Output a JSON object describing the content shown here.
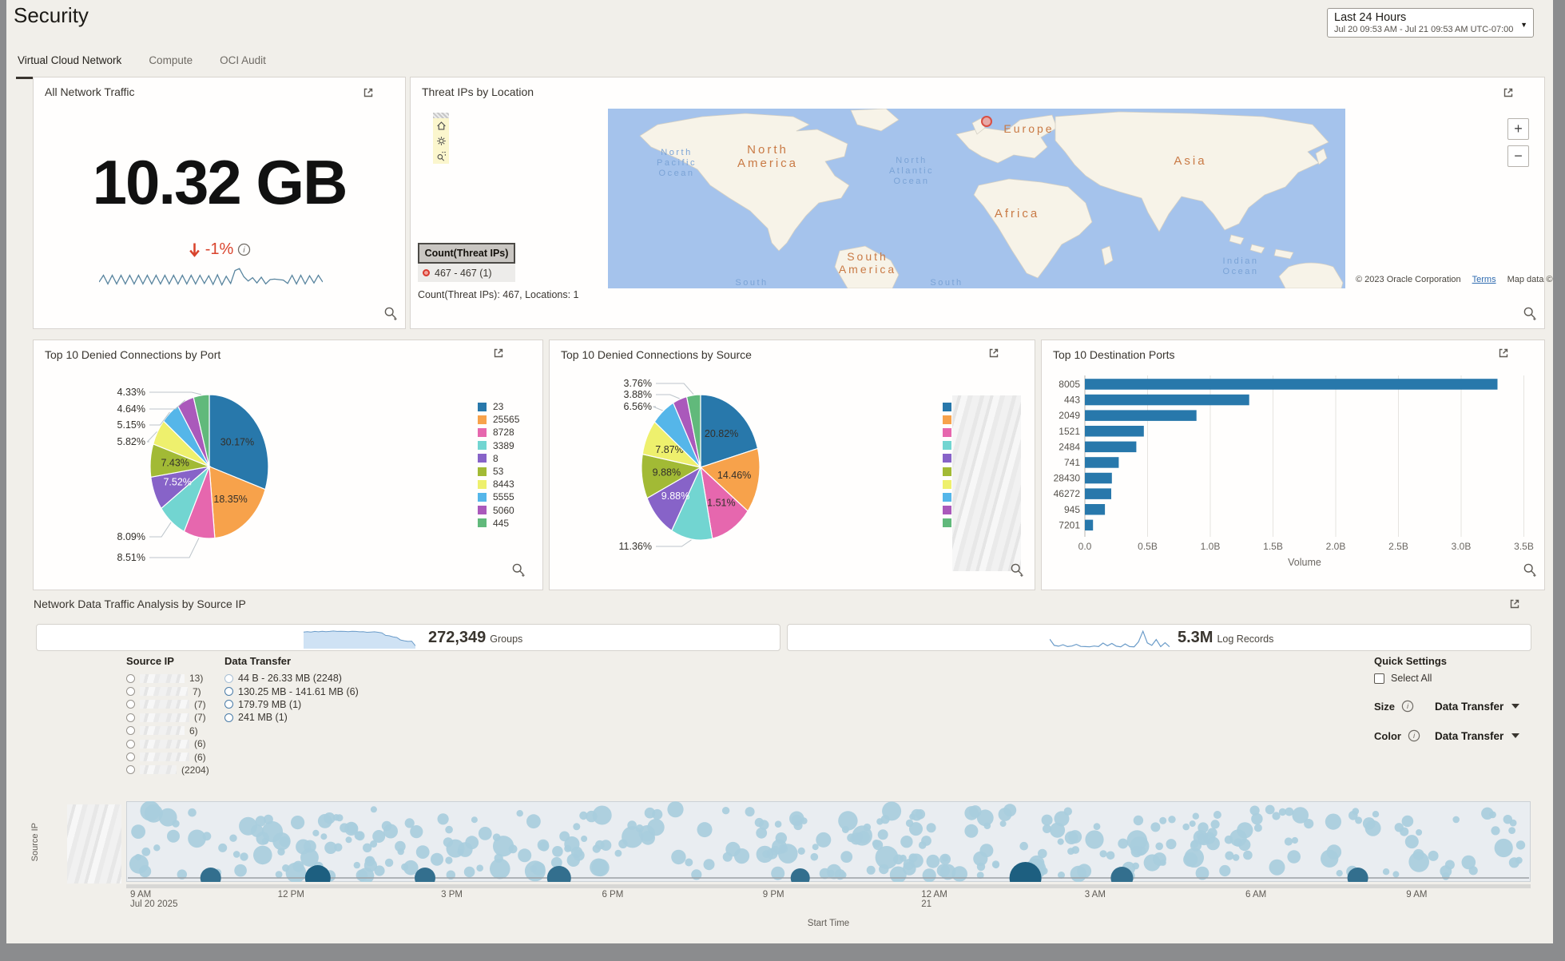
{
  "header": {
    "title": "Security",
    "time_range": {
      "label": "Last 24 Hours",
      "detail": "Jul 20 09:53 AM - Jul 21 09:53 AM UTC-07:00"
    }
  },
  "tabs": [
    {
      "label": "Virtual Cloud Network",
      "active": true
    },
    {
      "label": "Compute",
      "active": false
    },
    {
      "label": "OCI Audit",
      "active": false
    }
  ],
  "traffic": {
    "title": "All Network Traffic",
    "value": "10.32 GB",
    "delta": "-1%",
    "delta_color": "#d9432c",
    "spark": [
      40,
      68,
      32,
      68,
      32,
      68,
      32,
      68,
      32,
      68,
      32,
      68,
      32,
      68,
      32,
      68,
      32,
      68,
      32,
      68,
      32,
      68,
      32,
      68,
      34,
      66,
      30,
      70,
      28,
      64,
      34,
      88,
      96,
      62,
      44,
      58,
      36,
      60,
      32,
      50,
      52,
      50,
      48,
      34,
      68,
      32,
      68,
      32,
      66,
      36,
      68,
      40
    ]
  },
  "threat_map": {
    "title": "Threat IPs by Location",
    "legend_title": "Count(Threat IPs)",
    "legend_item": "467 - 467  (1)",
    "summary": "Count(Threat IPs): 467, Locations: 1",
    "attribution": "© 2023 Oracle Corporation",
    "terms_link": "Terms",
    "map_source": "Map data © HERE",
    "zoom_in": "+",
    "zoom_out": "−",
    "labels": [
      {
        "lines": [
          "North",
          "America"
        ],
        "type": "land"
      },
      {
        "lines": [
          "Europe"
        ],
        "type": "land"
      },
      {
        "lines": [
          "Asia"
        ],
        "type": "land"
      },
      {
        "lines": [
          "Africa"
        ],
        "type": "land"
      },
      {
        "lines": [
          "South",
          "America"
        ],
        "type": "land"
      },
      {
        "lines": [
          "North",
          "Pacific",
          "Ocean"
        ],
        "type": "ocean"
      },
      {
        "lines": [
          "North",
          "Atlantic",
          "Ocean"
        ],
        "type": "ocean"
      },
      {
        "lines": [
          "Indian",
          "Ocean"
        ],
        "type": "ocean"
      },
      {
        "lines": [
          "South"
        ],
        "type": "ocean"
      },
      {
        "lines": [
          "South"
        ],
        "type": "ocean"
      }
    ]
  },
  "analysis": {
    "title": "Network Data Traffic Analysis by Source IP",
    "groups": {
      "value": "272,349",
      "label": "Groups",
      "spark": [
        80,
        82,
        80,
        83,
        81,
        84,
        82,
        83,
        85,
        83,
        84,
        83,
        82,
        84,
        83,
        81,
        82,
        79,
        80,
        81,
        79,
        76,
        64,
        62,
        57,
        54,
        42,
        38,
        35,
        36,
        14
      ]
    },
    "logs": {
      "value": "5.3M",
      "label": "Log Records",
      "spark": [
        42,
        12,
        8,
        15,
        6,
        9,
        17,
        7,
        6,
        5,
        9,
        6,
        23,
        10,
        21,
        8,
        5,
        19,
        6,
        5,
        29,
        80,
        24,
        12,
        40,
        6,
        25,
        5
      ]
    },
    "source_ip": {
      "title": "Source IP",
      "items": [
        "13)",
        "7)",
        "(7)",
        "(7)",
        "6)",
        "(6)",
        "(6)",
        "(2204)"
      ]
    },
    "data_transfer": {
      "title": "Data Transfer",
      "options": [
        {
          "label": "44 B - 26.33 MB (2248)",
          "muted": true
        },
        {
          "label": "130.25 MB - 141.61 MB (6)",
          "muted": false
        },
        {
          "label": "179.79 MB (1)",
          "muted": false
        },
        {
          "label": "241 MB (1)",
          "muted": false
        }
      ]
    },
    "quick": {
      "title": "Quick Settings",
      "select_all": "Select All",
      "size_label": "Size",
      "size_value": "Data Transfer",
      "color_label": "Color",
      "color_value": "Data Transfer"
    }
  },
  "chart_data": [
    {
      "id": "pie_port",
      "type": "pie",
      "title": "Top 10 Denied Connections by Port",
      "slices": [
        {
          "label": "23",
          "pct": 30.17,
          "text": "30.17%",
          "color": "#2878ab",
          "place": "in",
          "white": false
        },
        {
          "label": "25565",
          "pct": 18.35,
          "text": "18.35%",
          "color": "#f7a24b",
          "place": "in",
          "white": false
        },
        {
          "label": "8728",
          "pct": 8.51,
          "text": "8.51%",
          "color": "#e667ae",
          "place": "out",
          "white": false
        },
        {
          "label": "3389",
          "pct": 8.09,
          "text": "8.09%",
          "color": "#72d5d1",
          "place": "out",
          "white": false
        },
        {
          "label": "8",
          "pct": 7.52,
          "text": "7.52%",
          "color": "#8763c8",
          "place": "in",
          "white": true
        },
        {
          "label": "53",
          "pct": 7.43,
          "text": "7.43%",
          "color": "#a2ba35",
          "place": "in",
          "white": false
        },
        {
          "label": "8443",
          "pct": 5.82,
          "text": "5.82%",
          "color": "#eef06d",
          "place": "out",
          "white": false
        },
        {
          "label": "5555",
          "pct": 5.15,
          "text": "5.15%",
          "color": "#55b6e9",
          "place": "out",
          "white": false
        },
        {
          "label": "5060",
          "pct": 4.64,
          "text": "4.64%",
          "color": "#aa59bb",
          "place": "out",
          "white": false
        },
        {
          "label": "445",
          "pct": 4.33,
          "text": "4.33%",
          "color": "#61b97b",
          "place": "out",
          "white": false
        }
      ],
      "legend_redacted": false
    },
    {
      "id": "pie_source",
      "type": "pie",
      "title": "Top 10 Denied Connections by Source",
      "slices": [
        {
          "label": "",
          "pct": 20.82,
          "text": "20.82%",
          "color": "#2878ab",
          "place": "in",
          "white": false
        },
        {
          "label": "",
          "pct": 14.46,
          "text": "14.46%",
          "color": "#f7a24b",
          "place": "in",
          "white": false
        },
        {
          "label": "",
          "pct": 11.51,
          "text": "11.51%",
          "color": "#e667ae",
          "place": "in",
          "white": false
        },
        {
          "label": "",
          "pct": 11.36,
          "text": "11.36%",
          "color": "#72d5d1",
          "place": "out",
          "white": false
        },
        {
          "label": "",
          "pct": 9.88,
          "text": "9.88%",
          "color": "#8763c8",
          "place": "in",
          "white": true
        },
        {
          "label": "",
          "pct": 9.88,
          "text": "9.88%",
          "color": "#a2ba35",
          "place": "in",
          "white": false
        },
        {
          "label": "",
          "pct": 7.87,
          "text": "7.87%",
          "color": "#eef06d",
          "place": "in",
          "white": false
        },
        {
          "label": "",
          "pct": 6.56,
          "text": "6.56%",
          "color": "#55b6e9",
          "place": "out",
          "white": false
        },
        {
          "label": "",
          "pct": 3.88,
          "text": "3.88%",
          "color": "#aa59bb",
          "place": "out",
          "white": false
        },
        {
          "label": "",
          "pct": 3.76,
          "text": "3.76%",
          "color": "#61b97b",
          "place": "out",
          "white": false
        }
      ],
      "legend_redacted": true
    },
    {
      "id": "bar_ports",
      "type": "bar",
      "title": "Top 10 Destination Ports",
      "categories": [
        "8005",
        "443",
        "2049",
        "1521",
        "2484",
        "741",
        "28430",
        "46272",
        "945",
        "7201"
      ],
      "values_billions": [
        3.29,
        1.31,
        0.89,
        0.47,
        0.41,
        0.27,
        0.215,
        0.21,
        0.16,
        0.065
      ],
      "xlim": [
        0,
        3.5
      ],
      "x_ticks": [
        "0.0",
        "0.5B",
        "1.0B",
        "1.5B",
        "2.0B",
        "2.5B",
        "3.0B",
        "3.5B"
      ],
      "xlabel": "Volume",
      "bar_color": "#2878ab"
    },
    {
      "id": "timeline",
      "type": "scatter",
      "xlabel": "Start Time",
      "ylabel": "Source IP",
      "x_ticks": [
        [
          "9 AM",
          "Jul 20 2025"
        ],
        [
          "12 PM"
        ],
        [
          "3 PM"
        ],
        [
          "6 PM"
        ],
        [
          "9 PM"
        ],
        [
          "12 AM",
          "21"
        ],
        [
          "3 AM"
        ],
        [
          "6 AM"
        ],
        [
          "9 AM"
        ]
      ],
      "point_color": "#a8cddd",
      "highlight_color": "#336f8e",
      "highlight_color_large": "#1d5f80",
      "highlights": [
        {
          "hours": 1.5,
          "r": 13
        },
        {
          "hours": 3.5,
          "r": 16
        },
        {
          "hours": 5.5,
          "r": 13
        },
        {
          "hours": 8.0,
          "r": 15
        },
        {
          "hours": 12.5,
          "r": 12
        },
        {
          "hours": 16.7,
          "r": 20
        },
        {
          "hours": 18.5,
          "r": 14
        },
        {
          "hours": 22.9,
          "r": 13
        }
      ]
    }
  ]
}
